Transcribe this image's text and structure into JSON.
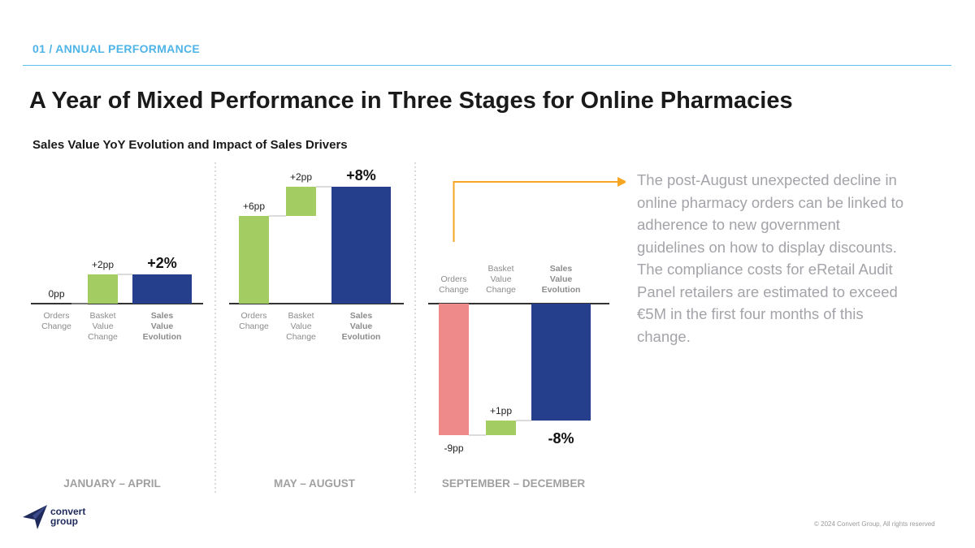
{
  "header": {
    "section_label": "01 / ANNUAL PERFORMANCE",
    "title": "A Year of Mixed Performance in Three Stages for Online Pharmacies"
  },
  "chart_title": "Sales Value YoY Evolution and Impact of Sales Drivers",
  "colors": {
    "accent": "#4fb4e8",
    "orders_positive": "#a3cd62",
    "orders_negative": "#ef8a8a",
    "basket": "#a3cd62",
    "total": "#263f8c",
    "arrow": "#f5a623"
  },
  "chart_data": {
    "type": "waterfall",
    "unit": "pp",
    "groups": [
      {
        "period": "JANUARY – APRIL",
        "categories": [
          "Orders Change",
          "Basket Value Change",
          "Sales Value Evolution"
        ],
        "values": [
          0,
          2,
          2
        ],
        "labels": [
          "0pp",
          "+2pp",
          "+2%"
        ]
      },
      {
        "period": "MAY – AUGUST",
        "categories": [
          "Orders Change",
          "Basket Value Change",
          "Sales Value Evolution"
        ],
        "values": [
          6,
          2,
          8
        ],
        "labels": [
          "+6pp",
          "+2pp",
          "+8%"
        ]
      },
      {
        "period": "SEPTEMBER – DECEMBER",
        "categories": [
          "Orders Change",
          "Basket Value Change",
          "Sales Value Evolution"
        ],
        "values": [
          -9,
          1,
          -8
        ],
        "labels": [
          "-9pp",
          "+1pp",
          "-8%"
        ]
      }
    ]
  },
  "note": "The post-August unexpected decline in online pharmacy orders can be linked to adherence to new government guidelines on how to display discounts. The compliance costs for eRetail Audit Panel retailers are estimated to exceed €5M in the first four months of this change.",
  "footer": {
    "logo_line1": "convert",
    "logo_line2": "group",
    "copyright": "© 2024 Convert Group, All rights reserved"
  }
}
